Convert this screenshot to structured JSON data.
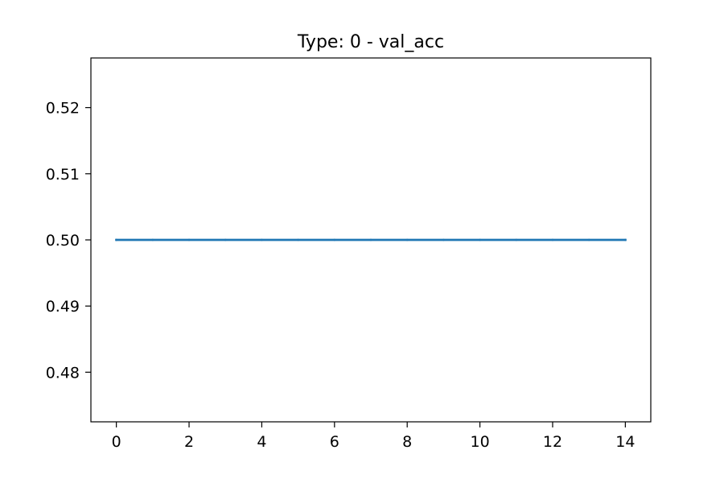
{
  "chart_data": {
    "type": "line",
    "title": "Type: 0 - val_acc",
    "xlabel": "",
    "ylabel": "",
    "xlim": [
      -0.7,
      14.7
    ],
    "ylim": [
      0.4725,
      0.5275
    ],
    "xticks": [
      0,
      2,
      4,
      6,
      8,
      10,
      12,
      14
    ],
    "xtick_labels": [
      "0",
      "2",
      "4",
      "6",
      "8",
      "10",
      "12",
      "14"
    ],
    "yticks": [
      0.48,
      0.49,
      0.5,
      0.51,
      0.52
    ],
    "ytick_labels": [
      "0.48",
      "0.49",
      "0.50",
      "0.51",
      "0.52"
    ],
    "grid": false,
    "legend": "none",
    "series": [
      {
        "color": "#1f77b4",
        "x": [
          0,
          1,
          2,
          3,
          4,
          5,
          6,
          7,
          8,
          9,
          10,
          11,
          12,
          13,
          14
        ],
        "values": [
          0.5,
          0.5,
          0.5,
          0.5,
          0.5,
          0.5,
          0.5,
          0.5,
          0.5,
          0.5,
          0.5,
          0.5,
          0.5,
          0.5,
          0.5
        ]
      }
    ]
  }
}
